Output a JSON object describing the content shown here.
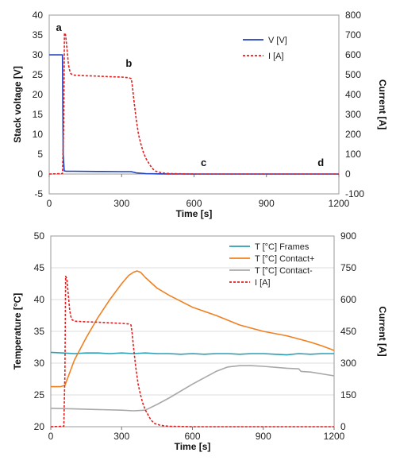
{
  "chart_data": [
    {
      "type": "line",
      "xlabel": "Time [s]",
      "ylabel_left": "Stack voltage [V]",
      "ylabel_right": "Current [A]",
      "xlim": [
        0,
        1200
      ],
      "ylim_left": [
        -5,
        40
      ],
      "ylim_right": [
        -100,
        800
      ],
      "xticks": [
        "0",
        "300",
        "600",
        "900",
        "1200"
      ],
      "yticks_left": [
        "-5",
        "0",
        "5",
        "10",
        "15",
        "20",
        "25",
        "30",
        "35",
        "40"
      ],
      "yticks_right": [
        "-100",
        "0",
        "100",
        "200",
        "300",
        "400",
        "500",
        "600",
        "700",
        "800"
      ],
      "legend_position": "top-right",
      "grid": false,
      "series": [
        {
          "name": "V [V]",
          "axis": "left",
          "color": "#1f3fbf",
          "style": "solid",
          "x": [
            0,
            55,
            58,
            62,
            70,
            100,
            200,
            300,
            340,
            360,
            400,
            450,
            500,
            600,
            900,
            1200
          ],
          "y": [
            30,
            30,
            5,
            0.8,
            0.7,
            0.7,
            0.65,
            0.6,
            0.6,
            0.3,
            0.1,
            0.05,
            0.02,
            0,
            0,
            0
          ]
        },
        {
          "name": "I [A]",
          "axis": "right",
          "color": "#e02020",
          "style": "dashed",
          "x": [
            0,
            55,
            60,
            63,
            68,
            72,
            76,
            80,
            85,
            90,
            100,
            150,
            200,
            250,
            300,
            330,
            340,
            345,
            350,
            360,
            370,
            380,
            390,
            400,
            410,
            420,
            430,
            440,
            460,
            480,
            500,
            600,
            900,
            1200
          ],
          "y": [
            0,
            2,
            250,
            710,
            700,
            650,
            600,
            550,
            520,
            505,
            498,
            495,
            493,
            490,
            488,
            485,
            480,
            440,
            380,
            280,
            200,
            150,
            110,
            80,
            60,
            40,
            25,
            15,
            8,
            4,
            2,
            0,
            0,
            0
          ]
        }
      ],
      "annotations": [
        {
          "text": "a",
          "x": 40,
          "y": 36
        },
        {
          "text": "b",
          "x": 330,
          "y": 27
        },
        {
          "text": "c",
          "x": 640,
          "y": 2
        },
        {
          "text": "d",
          "x": 1125,
          "y": 2
        }
      ]
    },
    {
      "type": "line",
      "xlabel": "Time [s]",
      "ylabel_left": "Temperature [°C]",
      "ylabel_right": "Current [A]",
      "xlim": [
        0,
        1200
      ],
      "ylim_left": [
        20,
        50
      ],
      "ylim_right": [
        0,
        900
      ],
      "xticks": [
        "0",
        "300",
        "600",
        "900",
        "1200"
      ],
      "yticks_left": [
        "20",
        "25",
        "30",
        "35",
        "40",
        "45",
        "50"
      ],
      "yticks_right": [
        "0",
        "150",
        "300",
        "450",
        "600",
        "750",
        "900"
      ],
      "legend_position": "top-right",
      "grid": true,
      "series": [
        {
          "name": "T [°C] Frames",
          "axis": "left",
          "color": "#2a9fb5",
          "style": "solid",
          "x": [
            0,
            50,
            100,
            150,
            200,
            250,
            300,
            350,
            400,
            450,
            500,
            550,
            600,
            650,
            700,
            750,
            800,
            850,
            900,
            950,
            1000,
            1050,
            1100,
            1150,
            1200
          ],
          "y": [
            31.7,
            31.6,
            31.5,
            31.6,
            31.6,
            31.5,
            31.6,
            31.5,
            31.6,
            31.5,
            31.5,
            31.4,
            31.5,
            31.4,
            31.5,
            31.5,
            31.4,
            31.5,
            31.5,
            31.4,
            31.3,
            31.5,
            31.4,
            31.5,
            31.5
          ]
        },
        {
          "name": "T [°C] Contact+",
          "axis": "left",
          "color": "#f08020",
          "style": "solid",
          "x": [
            0,
            40,
            60,
            80,
            100,
            150,
            200,
            250,
            300,
            330,
            350,
            365,
            380,
            400,
            450,
            500,
            600,
            700,
            800,
            900,
            1000,
            1100,
            1150,
            1200
          ],
          "y": [
            26.3,
            26.3,
            26.5,
            28.5,
            30.5,
            34.0,
            37.2,
            40.0,
            42.5,
            43.8,
            44.3,
            44.5,
            44.3,
            43.5,
            41.8,
            40.7,
            38.8,
            37.5,
            36.0,
            35.0,
            34.3,
            33.3,
            32.7,
            32.0
          ]
        },
        {
          "name": "T [°C] Contact-",
          "axis": "left",
          "color": "#a8a8a8",
          "style": "solid",
          "x": [
            0,
            100,
            200,
            300,
            350,
            400,
            450,
            500,
            600,
            700,
            750,
            800,
            850,
            900,
            1000,
            1050,
            1060,
            1100,
            1200
          ],
          "y": [
            22.9,
            22.8,
            22.7,
            22.6,
            22.5,
            22.6,
            23.5,
            24.5,
            26.7,
            28.7,
            29.4,
            29.6,
            29.6,
            29.5,
            29.2,
            29.1,
            28.7,
            28.6,
            28.0
          ]
        },
        {
          "name": "I [A]",
          "axis": "right",
          "color": "#e02020",
          "style": "dashed",
          "x": [
            0,
            55,
            60,
            63,
            68,
            72,
            76,
            80,
            85,
            90,
            100,
            150,
            200,
            250,
            300,
            330,
            340,
            345,
            350,
            360,
            370,
            380,
            390,
            400,
            410,
            420,
            430,
            440,
            460,
            480,
            500,
            600,
            900,
            1200
          ],
          "y": [
            0,
            2,
            250,
            710,
            700,
            650,
            600,
            550,
            520,
            505,
            498,
            495,
            493,
            490,
            488,
            485,
            480,
            440,
            380,
            280,
            200,
            150,
            110,
            80,
            60,
            40,
            25,
            15,
            8,
            4,
            2,
            0,
            0,
            0
          ]
        }
      ]
    }
  ]
}
